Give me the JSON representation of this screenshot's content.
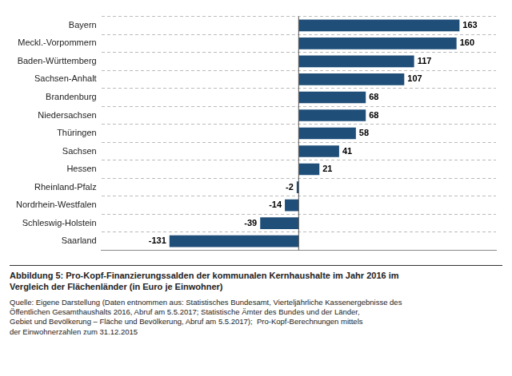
{
  "chart_data": {
    "type": "bar",
    "orientation": "horizontal",
    "title": "Abbildung 5: Pro-Kopf-Finanzierungssalden der kommunalen Kernhaushalte im Jahr 2016 im\nVergleich der Flächenländer (in Euro je Einwohner)",
    "subtitle": "Quelle: Eigene Darstellung (Daten entnommen aus: Statistisches Bundesamt, Vierteljährliche Kassenergebnisse des\nÖffentlichen Gesamthaushalts 2016, Abruf am 5.5.2017; Statistische Ämter des Bundes und der Länder,\nGebiet und Bevölkerung – Fläche und Bevölkerung, Abruf am 5.5.2017);  Pro-Kopf-Berechnungen mittels\nder Einwohnerzahlen zum 31.12.2015",
    "categories": [
      "Bayern",
      "Meckl.-Vorpommern",
      "Baden-Württemberg",
      "Sachsen-Anhalt",
      "Brandenburg",
      "Niedersachsen",
      "Thüringen",
      "Sachsen",
      "Hessen",
      "Rheinland-Pfalz",
      "Nordrhein-Westfalen",
      "Schleswig-Holstein",
      "Saarland"
    ],
    "values": [
      163,
      160,
      117,
      107,
      68,
      68,
      58,
      41,
      21,
      -2,
      -14,
      -39,
      -131
    ],
    "color": "#1F4E79",
    "xlim": [
      -200,
      200
    ],
    "tick_labels": "y",
    "grid": true,
    "data_labels": true
  }
}
